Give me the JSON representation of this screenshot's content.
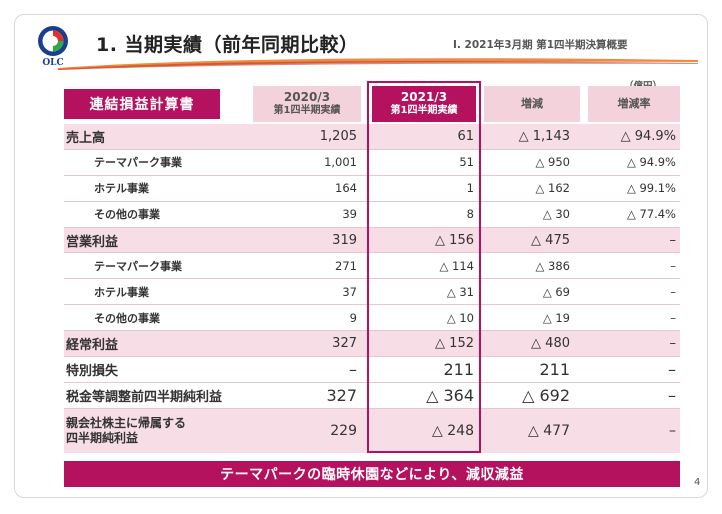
{
  "header": {
    "logo_text": "OLC",
    "title": "1. 当期実績（前年同期比較）",
    "section": "Ⅰ. 2021年3月期 第1四半期決算概要",
    "unit": "（億円）"
  },
  "table": {
    "title": "連結損益計算書",
    "columns": [
      {
        "year": "2020/3",
        "period": "第1四半期実績"
      },
      {
        "year": "2021/3",
        "period": "第1四半期実績"
      },
      {
        "label": "増減"
      },
      {
        "label": "増減率"
      }
    ],
    "rows": [
      {
        "label": "売上高",
        "v2020": "1,205",
        "v2021": "61",
        "diff": "△ 1,143",
        "rate": "△ 94.9%"
      },
      {
        "label": "テーマパーク事業",
        "v2020": "1,001",
        "v2021": "51",
        "diff": "△ 950",
        "rate": "△ 94.9%"
      },
      {
        "label": "ホテル事業",
        "v2020": "164",
        "v2021": "1",
        "diff": "△ 162",
        "rate": "△ 99.1%"
      },
      {
        "label": "その他の事業",
        "v2020": "39",
        "v2021": "8",
        "diff": "△ 30",
        "rate": "△ 77.4%"
      },
      {
        "label": "営業利益",
        "v2020": "319",
        "v2021": "△ 156",
        "diff": "△ 475",
        "rate": "–"
      },
      {
        "label": "テーマパーク事業",
        "v2020": "271",
        "v2021": "△ 114",
        "diff": "△ 386",
        "rate": "–"
      },
      {
        "label": "ホテル事業",
        "v2020": "37",
        "v2021": "△ 31",
        "diff": "△ 69",
        "rate": "–"
      },
      {
        "label": "その他の事業",
        "v2020": "9",
        "v2021": "△ 10",
        "diff": "△ 19",
        "rate": "–"
      },
      {
        "label": "経常利益",
        "v2020": "327",
        "v2021": "△ 152",
        "diff": "△ 480",
        "rate": "–"
      },
      {
        "label": "特別損失",
        "v2020": "–",
        "v2021": "211",
        "diff": "211",
        "rate": "–"
      },
      {
        "label": "税金等調整前四半期純利益",
        "v2020": "327",
        "v2021": "△ 364",
        "diff": "△ 692",
        "rate": "–"
      },
      {
        "label_line1": "親会社株主に帰属する",
        "label_line2": "四半期純利益",
        "v2020": "229",
        "v2021": "△ 248",
        "diff": "△ 477",
        "rate": "–"
      }
    ]
  },
  "banner": "テーマパークの臨時休園などにより、減収減益",
  "page_number": "4",
  "colors": {
    "accent": "#b4115e",
    "accent_light": "#f4d2dc",
    "row_highlight": "#f7dde5",
    "logo_blue": "#1a3f8f",
    "logo_red": "#e0312d",
    "logo_green": "#2eaa4a",
    "swoosh_orange": "#f08a3c"
  }
}
